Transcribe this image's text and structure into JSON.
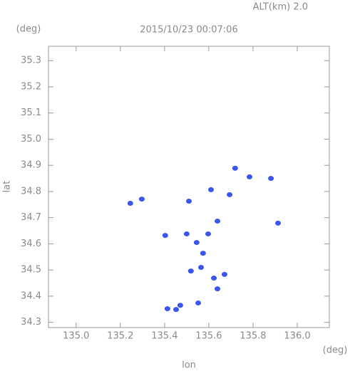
{
  "chart_data": {
    "type": "scatter",
    "title": "2015/10/23 00:07:06",
    "subtitle": "ALT(km) 2.0",
    "y_unit": "(deg)",
    "x_unit": "(deg)",
    "x_label": "lon",
    "y_label": "lat",
    "xlim": [
      134.875,
      136.145
    ],
    "ylim": [
      34.28,
      35.355
    ],
    "xticks": [
      {
        "value": 135,
        "label": "135.0"
      },
      135.2,
      135.4,
      135.6,
      135.8,
      {
        "value": 136,
        "label": "136.0"
      }
    ],
    "yticks": [
      34.3,
      34.4,
      34.5,
      34.6,
      34.7,
      34.8,
      34.9,
      {
        "value": 35,
        "label": "35.0"
      },
      35.1,
      35.2,
      35.3
    ],
    "color": "#3c55ee",
    "x": [
      135.881,
      135.913,
      135.245,
      135.297,
      135.61,
      135.51,
      135.639,
      135.5,
      135.597,
      135.545,
      135.574,
      135.565,
      135.519,
      135.623,
      135.671,
      135.639,
      135.552,
      135.471,
      135.413,
      135.452,
      135.403,
      135.719,
      135.784,
      135.694
    ],
    "values": [
      34.85,
      34.679,
      34.755,
      34.771,
      34.807,
      34.763,
      34.687,
      34.638,
      34.638,
      34.605,
      34.564,
      34.51,
      34.496,
      34.469,
      34.483,
      34.428,
      34.374,
      34.365,
      34.352,
      34.349,
      34.632,
      34.889,
      34.856,
      34.788
    ]
  }
}
